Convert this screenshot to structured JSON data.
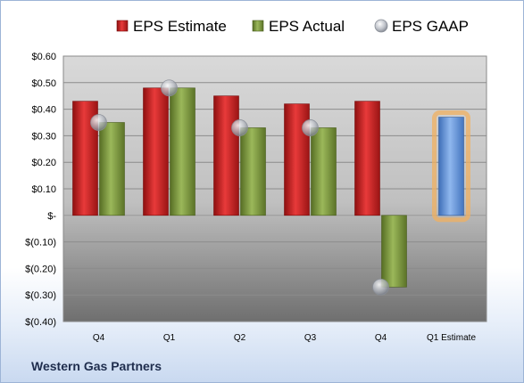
{
  "company": "Western Gas Partners",
  "chart_data": {
    "type": "bar",
    "title": "",
    "categories": [
      "Q4",
      "Q1",
      "Q2",
      "Q3",
      "Q4",
      "Q1 Estimate"
    ],
    "series": [
      {
        "name": "EPS Estimate",
        "values": [
          0.43,
          0.48,
          0.45,
          0.42,
          0.43,
          null
        ],
        "color": "#d02020"
      },
      {
        "name": "EPS Actual",
        "values": [
          0.35,
          0.48,
          0.33,
          0.33,
          -0.27,
          null
        ],
        "color": "#7d9b3a"
      },
      {
        "name": "EPS GAAP",
        "type": "scatter",
        "values": [
          0.35,
          0.48,
          0.33,
          0.33,
          -0.27,
          null
        ],
        "color": "#b8bcc4"
      }
    ],
    "estimate": {
      "category": "Q1 Estimate",
      "value": 0.37,
      "color": "#5f8fd6",
      "highlight": "#f0b060"
    },
    "ylim": [
      -0.4,
      0.6
    ],
    "yticks": [
      0.6,
      0.5,
      0.4,
      0.3,
      0.2,
      0.1,
      0,
      -0.1,
      -0.2,
      -0.3,
      -0.4
    ],
    "ytick_labels": [
      "$0.60",
      "$0.50",
      "$0.40",
      "$0.30",
      "$0.20",
      "$0.10",
      "$-",
      "$(0.10)",
      "$(0.20)",
      "$(0.30)",
      "$(0.40)"
    ],
    "legend": "top",
    "grid": true,
    "xlabel": "",
    "ylabel": ""
  }
}
